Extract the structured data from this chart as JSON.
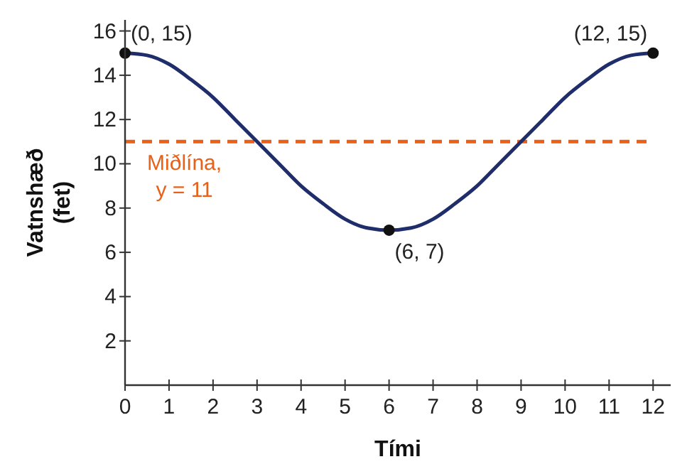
{
  "chart_data": {
    "type": "line",
    "xlabel": "Tími",
    "ylabel": "Vatnshæð (fet)",
    "xlim": [
      0,
      12.4
    ],
    "ylim": [
      0,
      16.5
    ],
    "xticks": [
      0,
      1,
      2,
      3,
      4,
      5,
      6,
      7,
      8,
      9,
      10,
      11,
      12
    ],
    "yticks": [
      2,
      4,
      6,
      8,
      10,
      12,
      14,
      16
    ],
    "series": [
      {
        "color": "#1f2d6b",
        "x": [
          0,
          0.5,
          1,
          1.5,
          2,
          2.5,
          3,
          3.5,
          4,
          4.5,
          5,
          5.5,
          6,
          6.5,
          7,
          7.5,
          8,
          8.5,
          9,
          9.5,
          10,
          10.5,
          11,
          11.5,
          12
        ],
        "values": [
          15,
          14.9,
          14.5,
          13.8,
          13,
          12,
          11,
          10,
          9,
          8.2,
          7.5,
          7.1,
          7,
          7.1,
          7.5,
          8.2,
          9,
          10,
          11,
          12,
          13,
          13.8,
          14.5,
          14.9,
          15
        ]
      },
      {
        "type": "scatter",
        "color": "#111111",
        "marker": "circle",
        "x": [
          0,
          6,
          12
        ],
        "values": [
          15,
          7,
          15
        ]
      }
    ],
    "ref_lines": [
      {
        "axis": "y",
        "value": 11,
        "label": "Miðlína, y = 11",
        "color": "#e8611a",
        "line_style": "dashed"
      }
    ],
    "annotations": [
      {
        "text": "(0, 15)",
        "x": 0,
        "y": 15
      },
      {
        "text": "(6, 7)",
        "x": 6,
        "y": 7
      },
      {
        "text": "(12, 15)",
        "x": 12,
        "y": 15
      }
    ]
  }
}
